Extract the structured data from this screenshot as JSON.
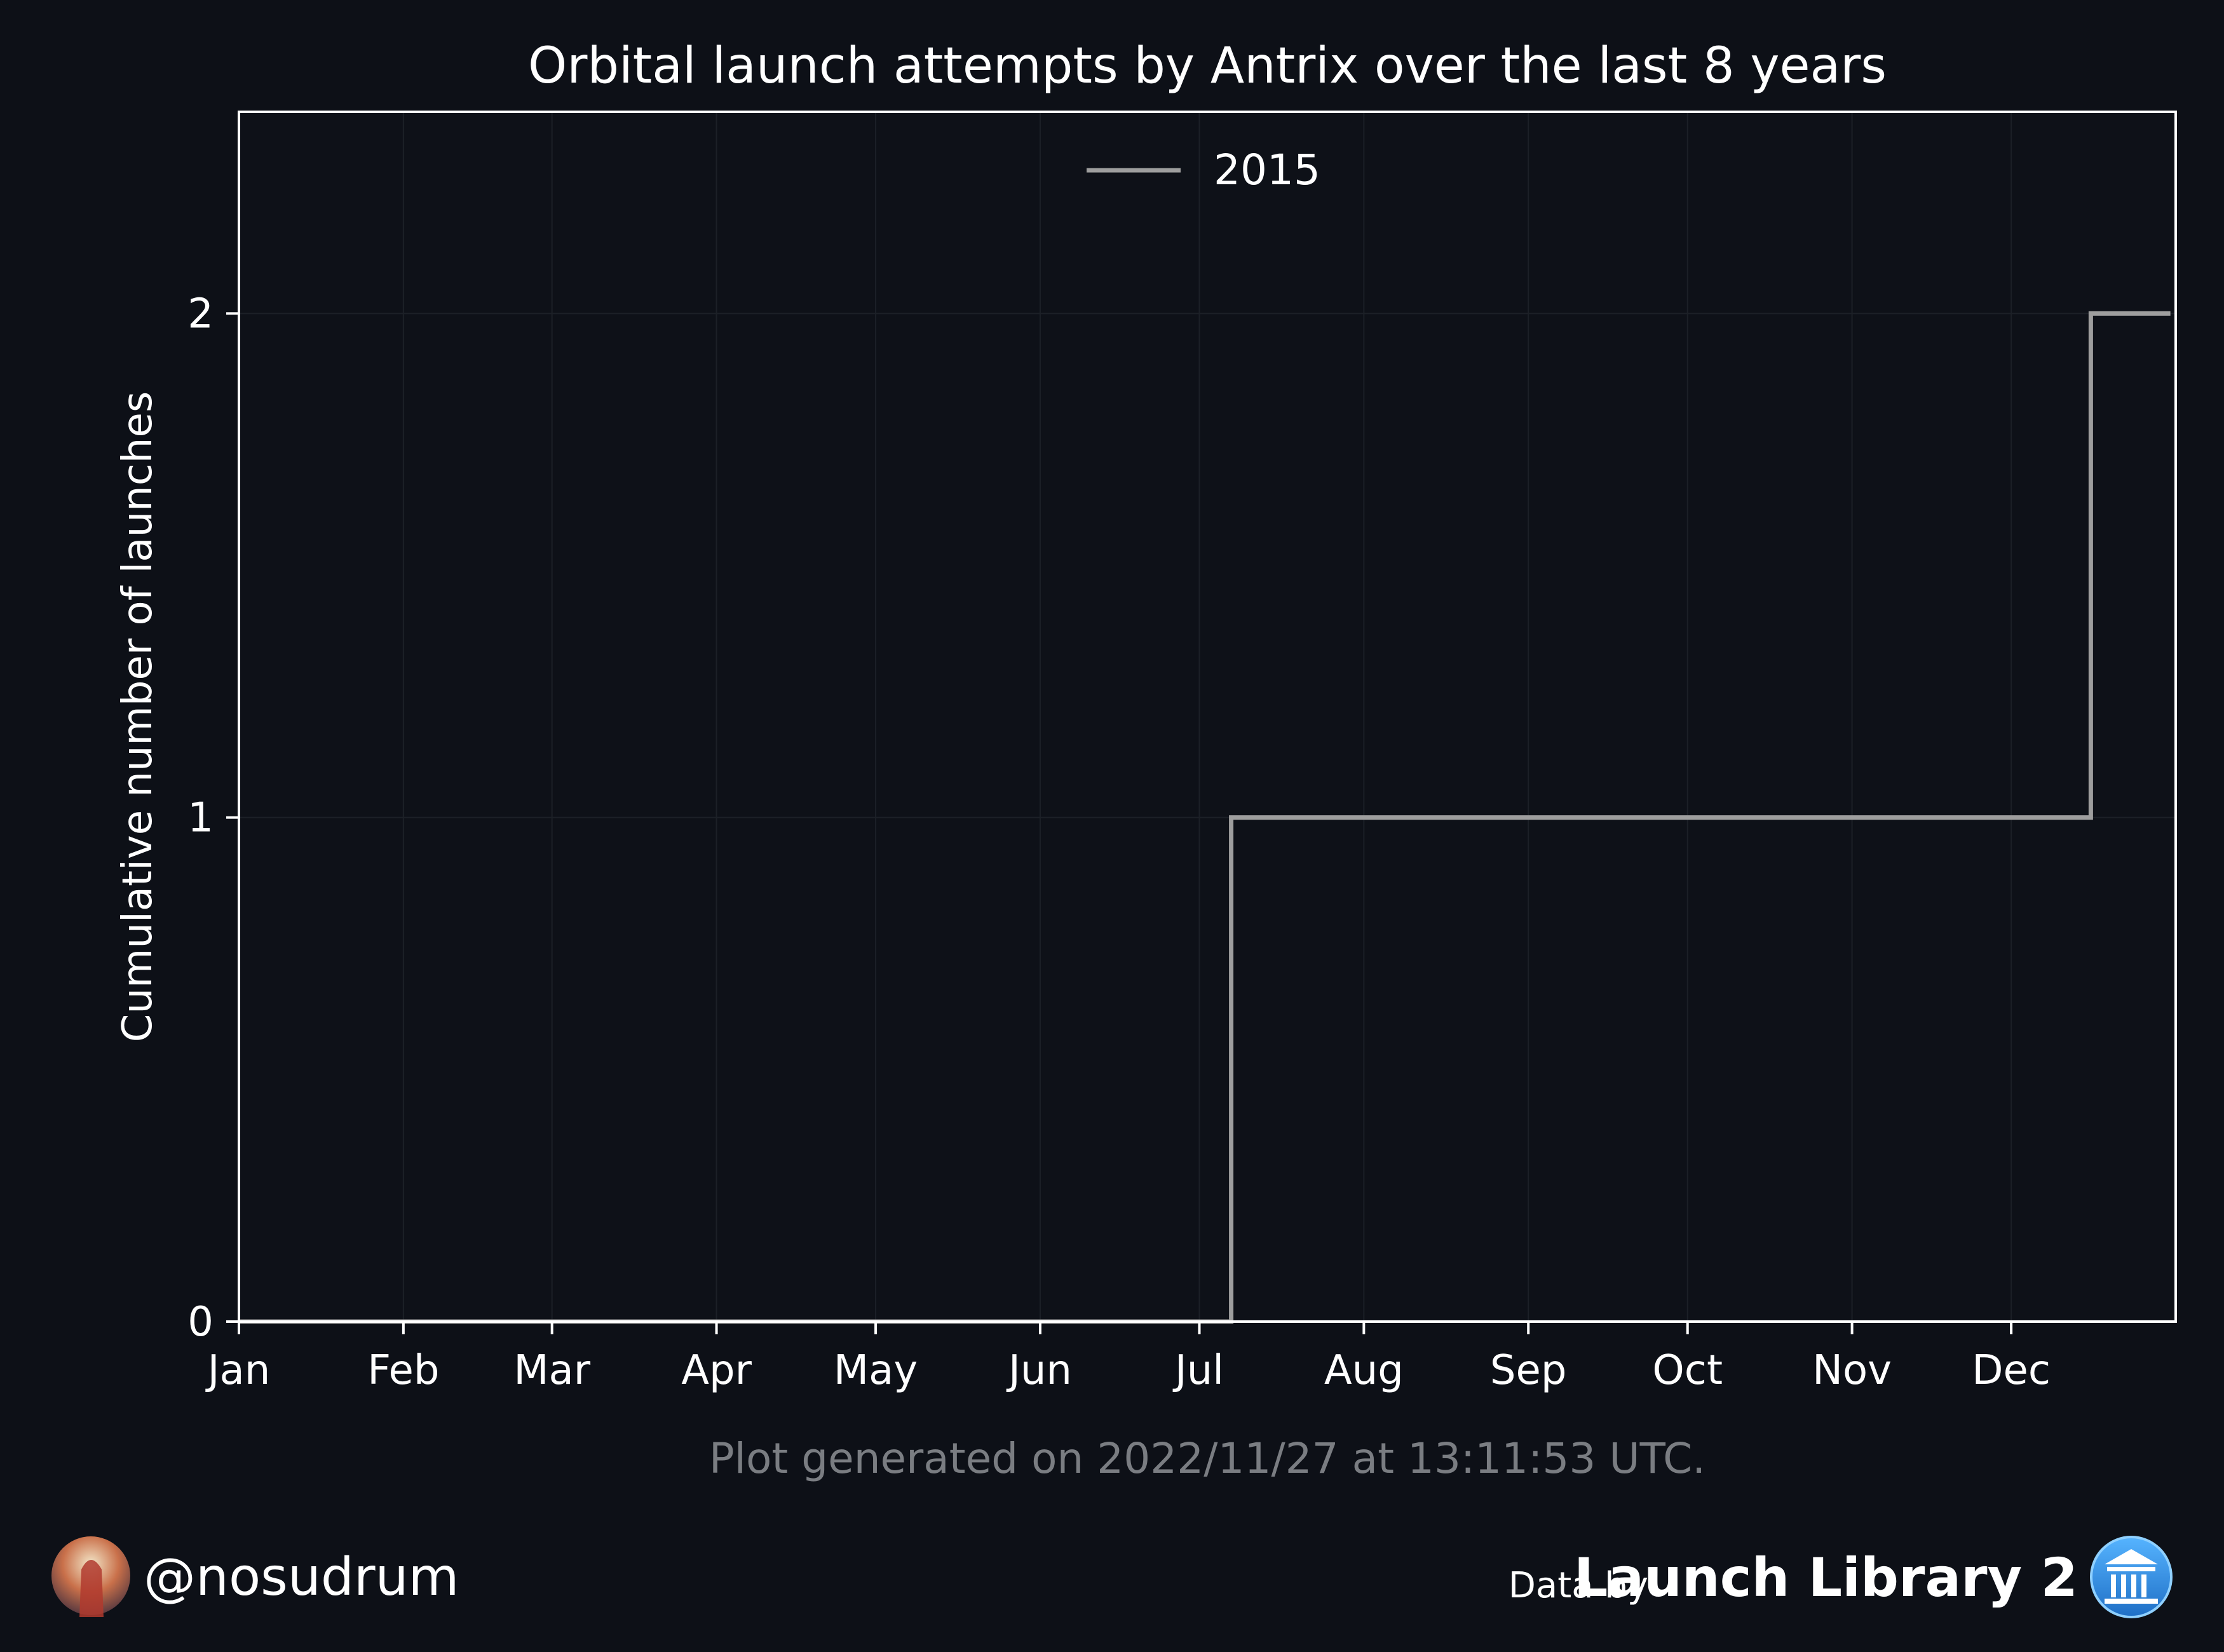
{
  "header": {
    "title": "Orbital launch attempts by Antrix over the last 8 years"
  },
  "chart_data": {
    "type": "line",
    "step": "post",
    "title": "Orbital launch attempts by Antrix over the last 8 years",
    "xlabel": "",
    "ylabel": "Cumulative number of launches",
    "x_tick_labels": [
      "Jan",
      "Feb",
      "Mar",
      "Apr",
      "May",
      "Jun",
      "Jul",
      "Aug",
      "Sep",
      "Oct",
      "Nov",
      "Dec"
    ],
    "y_ticks": [
      0,
      1,
      2
    ],
    "xlim": [
      "Jan 1",
      "Dec 31"
    ],
    "ylim": [
      0,
      2.4
    ],
    "grid": true,
    "legend_position": "upper center",
    "series": [
      {
        "name": "2015",
        "color": "#9e9e9e",
        "x": [
          "Jan 1",
          "Jul 7",
          "Dec 16",
          "Dec 31"
        ],
        "y": [
          0,
          1,
          2,
          2
        ]
      }
    ]
  },
  "footer": {
    "generated_note": "Plot generated on 2022/11/27 at 13:11:53 UTC.",
    "author_handle": "@nosudrum",
    "data_by_label": "Data by",
    "source_name": "Launch Library 2"
  },
  "icons": {
    "avatar": "avatar",
    "source_logo": "institution-icon"
  },
  "colors": {
    "background": "#0d1017",
    "axes_background": "#0e1118",
    "grid": "#1c2027",
    "series": "#9e9e9e",
    "logo_blue": "#2f8fe0"
  }
}
